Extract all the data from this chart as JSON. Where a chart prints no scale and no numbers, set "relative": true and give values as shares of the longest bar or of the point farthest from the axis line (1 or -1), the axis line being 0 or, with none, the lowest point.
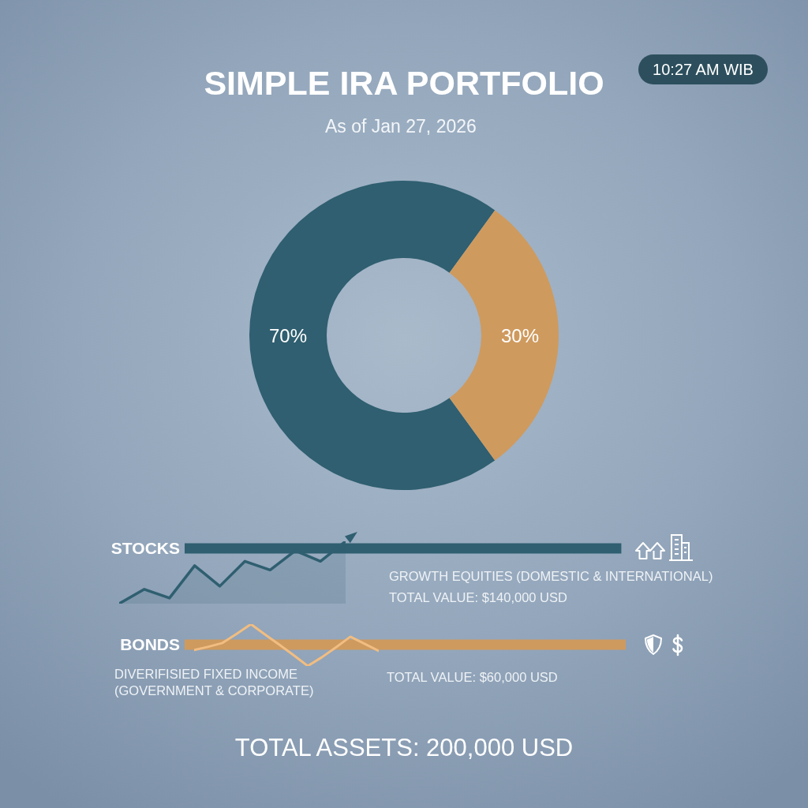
{
  "chart_data": [
    {
      "type": "donut",
      "title": "SIMPLE IRA PORTFOLIO",
      "subtitle": "As of Jan 27, 2026",
      "categories": [
        null,
        null
      ],
      "values": [
        70,
        30
      ],
      "colors": [
        "#2f5f70",
        "#cf9a5e"
      ],
      "value_labels": [
        "70%",
        "30%"
      ],
      "annotations": [
        "10:27 AM WIB",
        "GROWTH EQUITIES (DOMESTIC & INTERNATIONAL)",
        "TOTAL VALUE: $140,000 USD",
        "DIVERIFISIED FIXED INCOME\n(GOVERNMENT & CORPORATE)",
        "TOTAL VALUE: $60,000 USD",
        "TOTAL ASSETS: 200,000 USD"
      ]
    },
    {
      "type": "bar",
      "orientation": "horizontal",
      "relative": true,
      "categories": [
        "STOCKS",
        "BONDS"
      ],
      "values": [
        0.99,
        1
      ],
      "colors": [
        "#2f5f70",
        "#cf9a5e"
      ]
    },
    {
      "type": "area",
      "relative": true,
      "categories": [
        null,
        null,
        null,
        null,
        null,
        null,
        null,
        null,
        null,
        null
      ],
      "series": [
        {
          "color": "#2f5f70",
          "values": [
            0,
            0.23,
            0.09,
            0.61,
            0.28,
            0.68,
            0.54,
            0.85,
            0.68,
            1
          ]
        }
      ]
    },
    {
      "type": "line",
      "relative": true,
      "categories": [
        null,
        null,
        null,
        null,
        null,
        null,
        null,
        null,
        null,
        null,
        null,
        null,
        null,
        null
      ],
      "series": [
        {
          "color": "#f2bd80",
          "values": [
            0.38,
            0.46,
            0.55,
            0.77,
            1,
            0.75,
            0.51,
            0.26,
            0,
            0.21,
            0.45,
            0.7,
            0.53,
            0.36
          ]
        }
      ]
    }
  ]
}
